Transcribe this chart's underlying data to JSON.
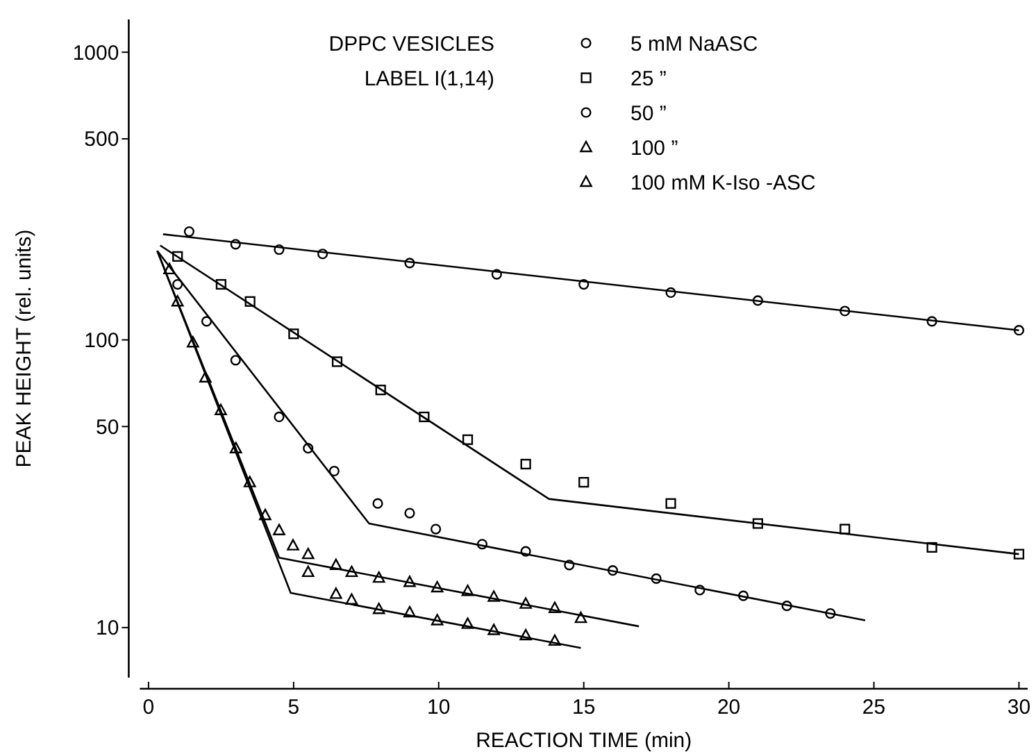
{
  "chart_data": {
    "type": "scatter",
    "xlabel": "REACTION TIME (min)",
    "ylabel": "PEAK HEIGHT (rel. units)",
    "annotations": [
      "DPPC VESICLES",
      "LABEL I(1,14)"
    ],
    "log": "y",
    "xlim": [
      -0.3,
      30.3
    ],
    "ylim": [
      6.7,
      1300
    ],
    "xticks": [
      0,
      5,
      10,
      15,
      20,
      25,
      30
    ],
    "yticks": [
      10,
      50,
      100,
      500,
      1000
    ],
    "grid": false,
    "legend": "top right",
    "series": [
      {
        "name": "5 mM NaASC",
        "color": "#000000",
        "marker": "circle",
        "x": [
          1.4,
          3.0,
          4.5,
          6.0,
          9.0,
          12.0,
          15.0,
          18.0,
          21.0,
          24.0,
          27.0,
          30.0
        ],
        "values": [
          238,
          215,
          206,
          199,
          185,
          169,
          156,
          146,
          137,
          126,
          116,
          108
        ]
      },
      {
        "name": "25 ”",
        "color": "#000000",
        "marker": "square",
        "x": [
          1.0,
          2.5,
          3.5,
          5.0,
          6.5,
          8.0,
          9.5,
          11.0,
          13.0,
          15.0,
          18.0,
          21.0,
          24.0,
          27.0,
          30.0
        ],
        "values": [
          195,
          156,
          136,
          105,
          84,
          67,
          54,
          45,
          37,
          32,
          27,
          23,
          22,
          19,
          18
        ]
      },
      {
        "name": "50 ”",
        "color": "#000000",
        "marker": "circle",
        "x": [
          1.0,
          2.0,
          3.0,
          4.5,
          5.5,
          6.4,
          7.9,
          9.0,
          9.9,
          11.5,
          13.0,
          14.5,
          16.0,
          17.5,
          19.0,
          20.5,
          22.0,
          23.5
        ],
        "values": [
          156,
          116,
          85,
          54,
          42,
          35,
          27,
          25,
          22,
          19.5,
          18.4,
          16.5,
          15.8,
          14.8,
          13.5,
          12.9,
          11.9,
          11.2
        ]
      },
      {
        "name": "100 ”",
        "color": "#000000",
        "marker": "triangle",
        "x": [
          0.72,
          1.53,
          2.49,
          3.49,
          5.5,
          6.46,
          7.0,
          7.94,
          9.0,
          9.95,
          11.0,
          11.9,
          13.0,
          14.0,
          14.9
        ],
        "values": [
          176,
          98,
          57,
          32,
          18,
          16.5,
          15.6,
          14.9,
          14.4,
          13.8,
          13.4,
          12.8,
          12.1,
          11.7,
          10.8
        ]
      },
      {
        "name": "100 mM K-Iso -ASC",
        "color": "#000000",
        "marker": "triangle",
        "x": [
          1.0,
          1.96,
          3.01,
          4.02,
          4.5,
          4.98,
          5.5,
          6.46,
          7.0,
          7.94,
          9.0,
          9.95,
          11.0,
          11.9,
          13.0,
          14.0
        ],
        "values": [
          136,
          74,
          42,
          24.6,
          21.8,
          19.3,
          15.6,
          13.1,
          12.5,
          11.6,
          11.3,
          10.6,
          10.3,
          9.8,
          9.4,
          9.0
        ]
      },
      {
        "type": "line",
        "color": "#000000",
        "marker": "none",
        "x": [
          0.5,
          30
        ],
        "values": [
          233,
          108
        ]
      },
      {
        "type": "line",
        "color": "#000000",
        "marker": "none",
        "x": [
          0.4,
          13.8,
          30
        ],
        "values": [
          213,
          28,
          18
        ]
      },
      {
        "type": "line",
        "color": "#000000",
        "marker": "none",
        "x": [
          0.3,
          7.6,
          24.7
        ],
        "values": [
          204,
          23,
          10.6
        ]
      },
      {
        "type": "line",
        "color": "#000000",
        "marker": "none",
        "x": [
          0.3,
          4.5,
          16.9
        ],
        "values": [
          204,
          17.5,
          10.1
        ]
      },
      {
        "type": "line",
        "color": "#000000",
        "marker": "none",
        "x": [
          0.3,
          4.9,
          14.9
        ],
        "values": [
          204,
          13.2,
          8.5
        ]
      }
    ]
  }
}
